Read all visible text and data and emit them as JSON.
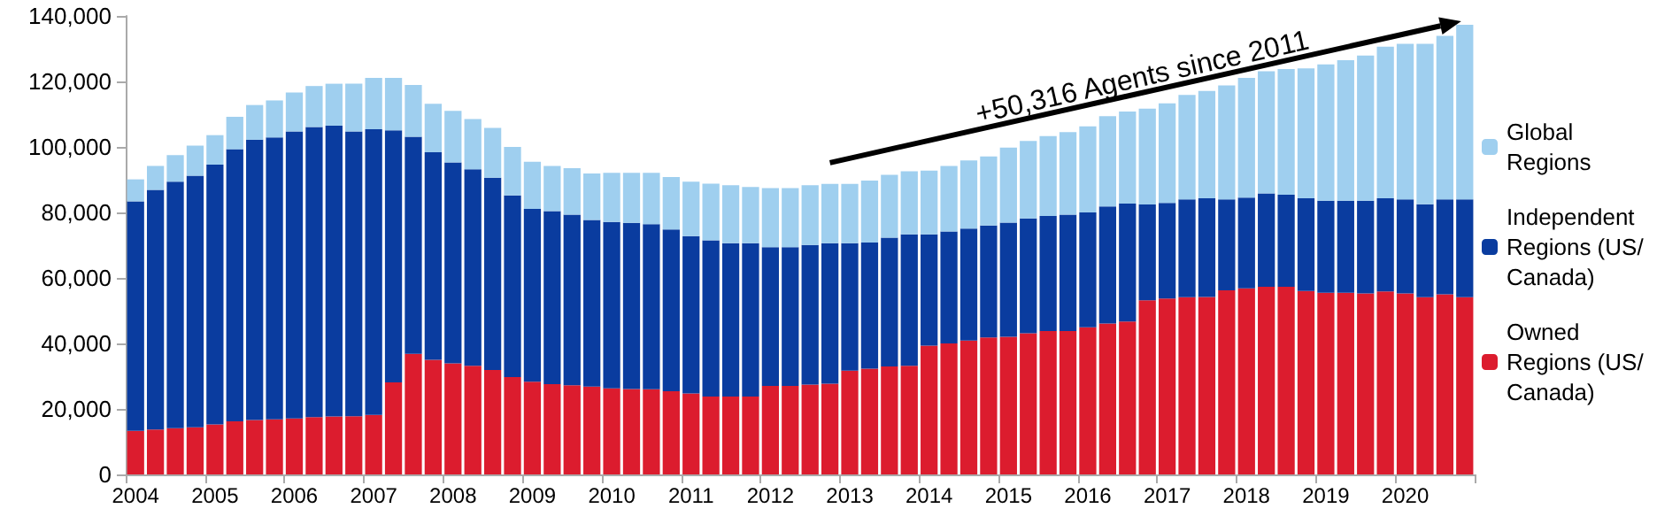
{
  "chart_data": {
    "type": "bar",
    "stacked": true,
    "legend": "right",
    "grid": false,
    "categories": [
      "2004",
      null,
      null,
      null,
      "2005",
      null,
      null,
      null,
      "2006",
      null,
      null,
      null,
      "2007",
      null,
      null,
      null,
      "2008",
      null,
      null,
      null,
      "2009",
      null,
      null,
      null,
      "2010",
      null,
      null,
      null,
      "2011",
      null,
      null,
      null,
      "2012",
      null,
      null,
      null,
      "2013",
      null,
      null,
      null,
      "2014",
      null,
      null,
      null,
      "2015",
      null,
      null,
      null,
      "2016",
      null,
      null,
      null,
      "2017",
      null,
      null,
      null,
      "2018",
      null,
      null,
      null,
      "2019",
      null,
      null,
      null,
      "2020",
      null,
      null,
      null
    ],
    "ylim": [
      0,
      140000
    ],
    "yticks": [
      {
        "value": 0,
        "label": "0"
      },
      {
        "value": 20000,
        "label": "20,000"
      },
      {
        "value": 40000,
        "label": "40,000"
      },
      {
        "value": 60000,
        "label": "60,000"
      },
      {
        "value": 80000,
        "label": "80,000"
      },
      {
        "value": 100000,
        "label": "100,000"
      },
      {
        "value": 120000,
        "label": "120,000"
      },
      {
        "value": 140000,
        "label": "140,000"
      }
    ],
    "series": [
      {
        "name": "Owned Regions (US/Canada)",
        "color": "#dc1c2e",
        "values": [
          13300,
          13700,
          14100,
          14400,
          15300,
          16200,
          16600,
          16800,
          17100,
          17500,
          17700,
          17800,
          18200,
          28100,
          36800,
          35000,
          33900,
          33200,
          31900,
          29700,
          28300,
          27600,
          27200,
          26800,
          26300,
          26100,
          26000,
          25400,
          24700,
          23800,
          23800,
          23800,
          27000,
          27000,
          27400,
          27700,
          31700,
          32300,
          33000,
          33200,
          39300,
          40000,
          40900,
          41800,
          42000,
          43100,
          43800,
          43800,
          44900,
          46100,
          46700,
          53200,
          53700,
          54100,
          54200,
          56200,
          56800,
          57300,
          57300,
          56000,
          55500,
          55500,
          55300,
          55900,
          55300,
          54100,
          55000,
          54100
        ]
      },
      {
        "name": "Independent Regions (US/Canada)",
        "color": "#0a3c9f",
        "values": [
          70100,
          73200,
          75300,
          76800,
          79300,
          83100,
          85600,
          86100,
          87600,
          88600,
          88800,
          86900,
          87200,
          77000,
          66300,
          63400,
          61400,
          60000,
          58700,
          55500,
          52800,
          52800,
          52100,
          50900,
          50800,
          50700,
          50400,
          49400,
          48100,
          47700,
          46800,
          46800,
          42400,
          42400,
          42700,
          42900,
          38900,
          38500,
          39300,
          40100,
          34000,
          34200,
          34200,
          34200,
          34900,
          35100,
          35100,
          35500,
          35100,
          35700,
          36000,
          29200,
          29200,
          29900,
          30100,
          27800,
          27700,
          28500,
          28100,
          28300,
          28100,
          28100,
          28300,
          28400,
          28700,
          28400,
          29000,
          29900
        ]
      },
      {
        "name": "Global Regions",
        "color": "#9fcfef",
        "values": [
          6700,
          7300,
          8100,
          9200,
          9000,
          9900,
          10600,
          11300,
          11900,
          12500,
          12800,
          14600,
          15700,
          16000,
          15800,
          14800,
          15700,
          15300,
          15200,
          14800,
          14400,
          13800,
          14200,
          14200,
          15000,
          15300,
          15700,
          16000,
          16600,
          17300,
          17700,
          17200,
          18000,
          18000,
          18200,
          18100,
          18100,
          18900,
          19200,
          19300,
          19500,
          20000,
          20800,
          21100,
          22900,
          23600,
          24400,
          25200,
          26300,
          27600,
          28100,
          29300,
          30400,
          31900,
          32800,
          34800,
          36600,
          37300,
          38400,
          39700,
          41600,
          42900,
          44300,
          46300,
          47500,
          49000,
          49900,
          53300
        ]
      }
    ],
    "annotations": [
      "+50,316 Agents since 2011"
    ]
  }
}
